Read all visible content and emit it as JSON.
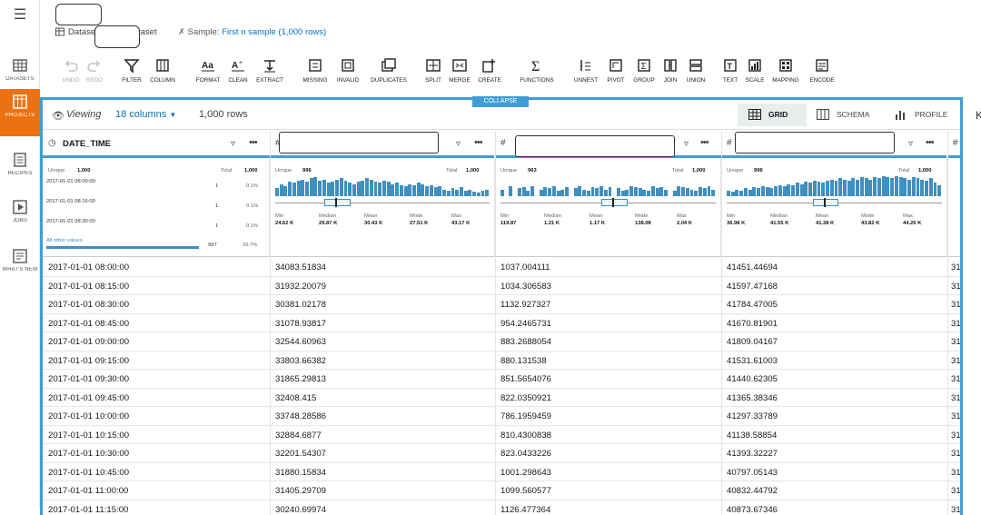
{
  "nav": {
    "items": [
      {
        "label": "DATASETS",
        "icon": "table-icon"
      },
      {
        "label": "PROJECTS",
        "icon": "grid-icon"
      },
      {
        "label": "RECIPES",
        "icon": "list-icon"
      },
      {
        "label": "JOBS",
        "icon": "play-icon"
      },
      {
        "label": "WHAT'S NEW",
        "icon": "news-icon"
      }
    ]
  },
  "header": {
    "dataset_label": "Datase",
    "dataset_suffix": "taset",
    "sample_label": "Sample:",
    "sample_value": "First n sample (1,000 rows)"
  },
  "toolbar": {
    "undo": "UNDO",
    "redo": "REDO",
    "filter": "FILTER",
    "column": "COLUMN",
    "format": "FORMAT",
    "clean": "CLEAN",
    "extract": "EXTRACT",
    "missing": "MISSING",
    "invalid": "INVALID",
    "duplicates": "DUPLICATES",
    "split": "SPLIT",
    "merge": "MERGE",
    "create": "CREATE",
    "functions": "FUNCTIONS",
    "unnest": "UNNEST",
    "pivot": "PIVOT",
    "group": "GROUP",
    "join": "JOIN",
    "union": "UNION",
    "text": "TEXT",
    "scale": "SCALE",
    "mapping": "MAPPING",
    "encode": "ENCODE"
  },
  "collapse_label": "COLLAPSE",
  "view": {
    "viewing": "Viewing",
    "columns": "18 columns",
    "rows": "1,000 rows",
    "tabs": [
      "GRID",
      "SCHEMA",
      "PROFILE"
    ]
  },
  "right_fragment": "K",
  "columns": [
    {
      "name": "DATE_TIME",
      "stats": {
        "unique_label": "Unique",
        "unique": "1,000",
        "total_label": "Total",
        "total": "1,000",
        "top": [
          {
            "value": "2017-01-01 08:00:00",
            "count": "1",
            "pct": "0.1%"
          },
          {
            "value": "2017-01-01 08:15:00",
            "count": "1",
            "pct": "0.1%"
          },
          {
            "value": "2017-01-01 08:30:00",
            "count": "1",
            "pct": "0.1%"
          }
        ],
        "other_label": "All other values",
        "other_count": "997",
        "other_pct": "99.7%"
      }
    },
    {
      "name": "",
      "stats": {
        "unique_label": "Unique",
        "unique": "996",
        "total_label": "Total",
        "total": "1,000",
        "min": "24.62 K",
        "median": "29.87 K",
        "mean": "30.43 K",
        "mode": "27.51 K",
        "max": "43.17 K"
      }
    },
    {
      "name": "",
      "stats": {
        "unique_label": "Unique",
        "unique": "963",
        "total_label": "Total",
        "total": "1,000",
        "min": "119.87",
        "median": "1.21 K",
        "mean": "1.17 K",
        "mode": "138.08",
        "max": "2.04 K"
      }
    },
    {
      "name": "",
      "stats": {
        "unique_label": "Unique",
        "unique": "996",
        "total_label": "Total",
        "total": "1,000",
        "min": "36.98 K",
        "median": "41.55 K",
        "mean": "41.38 K",
        "mode": "43.82 K",
        "max": "44.26 K"
      }
    }
  ],
  "stat_labels": {
    "min": "Min",
    "median": "Median",
    "mean": "Mean",
    "mode": "Mode",
    "max": "Max"
  },
  "rows": [
    [
      "2017-01-01 08:00:00",
      "34083.51834",
      "1037.004111",
      "41451.44694",
      "31"
    ],
    [
      "2017-01-01 08:15:00",
      "31932.20079",
      "1034.306583",
      "41597.47168",
      "31"
    ],
    [
      "2017-01-01 08:30:00",
      "30381.02178",
      "1132.927327",
      "41784.47005",
      "31"
    ],
    [
      "2017-01-01 08:45:00",
      "31078.93817",
      "954.2465731",
      "41670.81901",
      "31"
    ],
    [
      "2017-01-01 09:00:00",
      "32544.60963",
      "883.2688054",
      "41809.04167",
      "31"
    ],
    [
      "2017-01-01 09:15:00",
      "33803.66382",
      "880.131538",
      "41531.61003",
      "31"
    ],
    [
      "2017-01-01 09:30:00",
      "31865.29813",
      "851.5654076",
      "41440.62305",
      "31"
    ],
    [
      "2017-01-01 09:45:00",
      "32408.415",
      "822.0350921",
      "41365.38346",
      "31"
    ],
    [
      "2017-01-01 10:00:00",
      "33748.28586",
      "786.1959459",
      "41297.33789",
      "31"
    ],
    [
      "2017-01-01 10:15:00",
      "32884.6877",
      "810.4300838",
      "41138.58854",
      "31"
    ],
    [
      "2017-01-01 10:30:00",
      "32201.54307",
      "823.0433226",
      "41393.32227",
      "31"
    ],
    [
      "2017-01-01 10:45:00",
      "31880.15834",
      "1001.298643",
      "40797.05143",
      "31"
    ],
    [
      "2017-01-01 11:00:00",
      "31405.29709",
      "1099.560577",
      "40832.44792",
      "31"
    ],
    [
      "2017-01-01 11:15:00",
      "30240.69974",
      "1126.477364",
      "40873.67346",
      "31"
    ]
  ]
}
